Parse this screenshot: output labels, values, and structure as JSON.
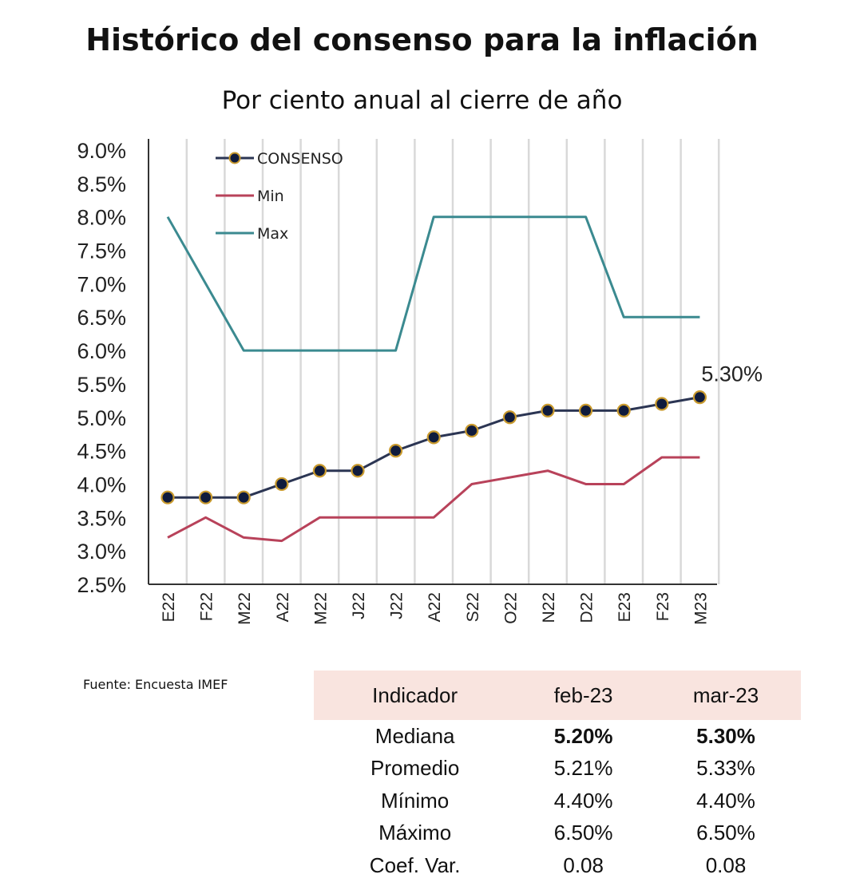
{
  "title": "Histórico del consenso para la inflación",
  "subtitle": "Por ciento anual al cierre de año",
  "source": "Fuente: Encuesta IMEF",
  "chart_data": {
    "type": "line",
    "title": "Histórico del consenso para la inflación",
    "subtitle": "Por ciento anual al cierre de año",
    "categories": [
      "E22",
      "F22",
      "M22",
      "A22",
      "M22",
      "J22",
      "J22",
      "A22",
      "S22",
      "O22",
      "N22",
      "D22",
      "E23",
      "F23",
      "M23"
    ],
    "ylim": [
      2.5,
      9.0
    ],
    "ytick_step": 0.5,
    "ytick_format": "percent_1dp",
    "grid": "vertical",
    "legend_position": "top-left",
    "series": [
      {
        "name": "CONSENSO",
        "color": "#2b3553",
        "marker": true,
        "values": [
          3.8,
          3.8,
          3.8,
          4.0,
          4.2,
          4.2,
          4.5,
          4.7,
          4.8,
          5.0,
          5.1,
          5.1,
          5.1,
          5.2,
          5.3
        ]
      },
      {
        "name": "Min",
        "color": "#b8425a",
        "marker": false,
        "values": [
          3.2,
          3.5,
          3.2,
          3.15,
          3.5,
          3.5,
          3.5,
          3.5,
          4.0,
          4.1,
          4.2,
          4.0,
          4.0,
          4.4,
          4.4
        ]
      },
      {
        "name": "Max",
        "color": "#3b8a90",
        "marker": false,
        "values": [
          8.0,
          7.0,
          6.0,
          6.0,
          6.0,
          6.0,
          6.0,
          8.0,
          8.0,
          8.0,
          8.0,
          8.0,
          6.5,
          6.5,
          6.5
        ]
      }
    ],
    "annotations": [
      {
        "series": "CONSENSO",
        "index": 14,
        "text": "5.30%"
      }
    ]
  },
  "table": {
    "headers": [
      "Indicador",
      "feb-23",
      "mar-23"
    ],
    "rows": [
      {
        "label": "Mediana",
        "feb": "5.20%",
        "mar": "5.30%",
        "bold": true
      },
      {
        "label": "Promedio",
        "feb": "5.21%",
        "mar": "5.33%",
        "bold": false
      },
      {
        "label": "Mínimo",
        "feb": "4.40%",
        "mar": "4.40%",
        "bold": false
      },
      {
        "label": "Máximo",
        "feb": "6.50%",
        "mar": "6.50%",
        "bold": false
      },
      {
        "label": "Coef. Var.",
        "feb": "0.08",
        "mar": "0.08",
        "bold": false
      }
    ]
  }
}
